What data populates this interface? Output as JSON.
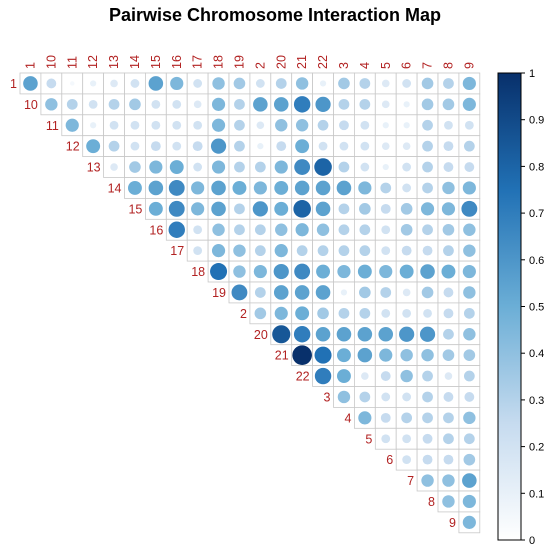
{
  "chart_data": {
    "type": "heatmap",
    "title": "Pairwise Chromosome Interaction Map",
    "labels": [
      "1",
      "10",
      "11",
      "12",
      "13",
      "14",
      "15",
      "16",
      "17",
      "18",
      "19",
      "2",
      "20",
      "21",
      "22",
      "3",
      "4",
      "5",
      "6",
      "7",
      "8",
      "9"
    ],
    "lower_triangle_empty": true,
    "value_range": [
      0,
      1
    ],
    "colorbar": {
      "ticks": [
        0,
        0.1,
        0.2,
        0.3,
        0.4,
        0.5,
        0.6,
        0.7,
        0.8,
        0.9,
        1
      ],
      "low_color": "#ffffff",
      "high_color": "#08306b"
    },
    "matrix": [
      [
        0.55,
        0.25,
        0.05,
        0.1,
        0.15,
        0.2,
        0.55,
        0.45,
        0.2,
        0.4,
        0.35,
        0.2,
        0.3,
        0.4,
        0.1,
        0.35,
        0.3,
        0.15,
        0.2,
        0.35,
        0.3,
        0.45
      ],
      [
        null,
        0.4,
        0.3,
        0.2,
        0.3,
        0.35,
        0.2,
        0.2,
        0.15,
        0.45,
        0.3,
        0.55,
        0.55,
        0.7,
        0.6,
        0.3,
        0.3,
        0.15,
        0.1,
        0.35,
        0.35,
        0.45
      ],
      [
        null,
        null,
        0.45,
        0.1,
        0.2,
        0.2,
        0.2,
        0.2,
        0.2,
        0.45,
        0.3,
        0.15,
        0.4,
        0.4,
        0.3,
        0.25,
        0.2,
        0.1,
        0.1,
        0.3,
        0.2,
        0.2
      ],
      [
        null,
        null,
        null,
        0.5,
        0.3,
        0.2,
        0.25,
        0.2,
        0.25,
        0.6,
        0.3,
        0.1,
        0.25,
        0.5,
        0.2,
        0.2,
        0.2,
        0.15,
        0.15,
        0.3,
        0.25,
        0.3
      ],
      [
        null,
        null,
        null,
        null,
        0.15,
        0.35,
        0.45,
        0.5,
        0.2,
        0.45,
        0.3,
        0.3,
        0.45,
        0.65,
        0.8,
        0.3,
        0.2,
        0.1,
        0.2,
        0.3,
        0.25,
        0.25
      ],
      [
        null,
        null,
        null,
        null,
        null,
        0.5,
        0.55,
        0.65,
        0.45,
        0.55,
        0.5,
        0.45,
        0.5,
        0.55,
        0.55,
        0.55,
        0.45,
        0.3,
        0.2,
        0.3,
        0.4,
        0.45
      ],
      [
        null,
        null,
        null,
        null,
        null,
        null,
        0.5,
        0.65,
        0.45,
        0.55,
        0.3,
        0.6,
        0.5,
        0.8,
        0.55,
        0.3,
        0.35,
        0.25,
        0.35,
        0.45,
        0.45,
        0.65
      ],
      [
        null,
        null,
        null,
        null,
        null,
        null,
        null,
        0.7,
        0.2,
        0.4,
        0.3,
        0.3,
        0.4,
        0.45,
        0.4,
        0.3,
        0.3,
        0.2,
        0.35,
        0.3,
        0.35,
        0.4
      ],
      [
        null,
        null,
        null,
        null,
        null,
        null,
        null,
        null,
        0.2,
        0.45,
        0.4,
        0.3,
        0.45,
        0.3,
        0.3,
        0.3,
        0.3,
        0.2,
        0.25,
        0.25,
        0.3,
        0.4
      ],
      [
        null,
        null,
        null,
        null,
        null,
        null,
        null,
        null,
        null,
        0.75,
        0.4,
        0.45,
        0.6,
        0.65,
        0.5,
        0.45,
        0.5,
        0.45,
        0.5,
        0.55,
        0.5,
        0.45
      ],
      [
        null,
        null,
        null,
        null,
        null,
        null,
        null,
        null,
        null,
        null,
        0.65,
        0.3,
        0.55,
        0.55,
        0.55,
        0.1,
        0.35,
        0.3,
        0.15,
        0.35,
        0.25,
        0.4
      ],
      [
        null,
        null,
        null,
        null,
        null,
        null,
        null,
        null,
        null,
        null,
        null,
        0.35,
        0.45,
        0.5,
        0.35,
        0.3,
        0.3,
        0.2,
        0.2,
        0.2,
        0.25,
        0.3
      ],
      [
        null,
        null,
        null,
        null,
        null,
        null,
        null,
        null,
        null,
        null,
        null,
        null,
        0.85,
        0.7,
        0.55,
        0.55,
        0.55,
        0.55,
        0.6,
        0.6,
        0.3,
        0.4
      ],
      [
        null,
        null,
        null,
        null,
        null,
        null,
        null,
        null,
        null,
        null,
        null,
        null,
        null,
        1.0,
        0.75,
        0.5,
        0.55,
        0.45,
        0.4,
        0.4,
        0.35,
        0.35
      ],
      [
        null,
        null,
        null,
        null,
        null,
        null,
        null,
        null,
        null,
        null,
        null,
        null,
        null,
        null,
        0.7,
        0.5,
        0.15,
        0.25,
        0.4,
        0.3,
        0.15,
        0.3
      ],
      [
        null,
        null,
        null,
        null,
        null,
        null,
        null,
        null,
        null,
        null,
        null,
        null,
        null,
        null,
        null,
        0.4,
        0.3,
        0.2,
        0.2,
        0.3,
        0.25,
        0.25
      ],
      [
        null,
        null,
        null,
        null,
        null,
        null,
        null,
        null,
        null,
        null,
        null,
        null,
        null,
        null,
        null,
        null,
        0.45,
        0.25,
        0.3,
        0.3,
        0.3,
        0.4
      ],
      [
        null,
        null,
        null,
        null,
        null,
        null,
        null,
        null,
        null,
        null,
        null,
        null,
        null,
        null,
        null,
        null,
        null,
        0.2,
        0.2,
        0.25,
        0.3,
        0.3
      ],
      [
        null,
        null,
        null,
        null,
        null,
        null,
        null,
        null,
        null,
        null,
        null,
        null,
        null,
        null,
        null,
        null,
        null,
        null,
        0.2,
        0.25,
        0.25,
        0.35
      ],
      [
        null,
        null,
        null,
        null,
        null,
        null,
        null,
        null,
        null,
        null,
        null,
        null,
        null,
        null,
        null,
        null,
        null,
        null,
        null,
        0.4,
        0.4,
        0.55
      ],
      [
        null,
        null,
        null,
        null,
        null,
        null,
        null,
        null,
        null,
        null,
        null,
        null,
        null,
        null,
        null,
        null,
        null,
        null,
        null,
        null,
        0.4,
        0.45
      ],
      [
        null,
        null,
        null,
        null,
        null,
        null,
        null,
        null,
        null,
        null,
        null,
        null,
        null,
        null,
        null,
        null,
        null,
        null,
        null,
        null,
        null,
        0.45
      ]
    ]
  }
}
